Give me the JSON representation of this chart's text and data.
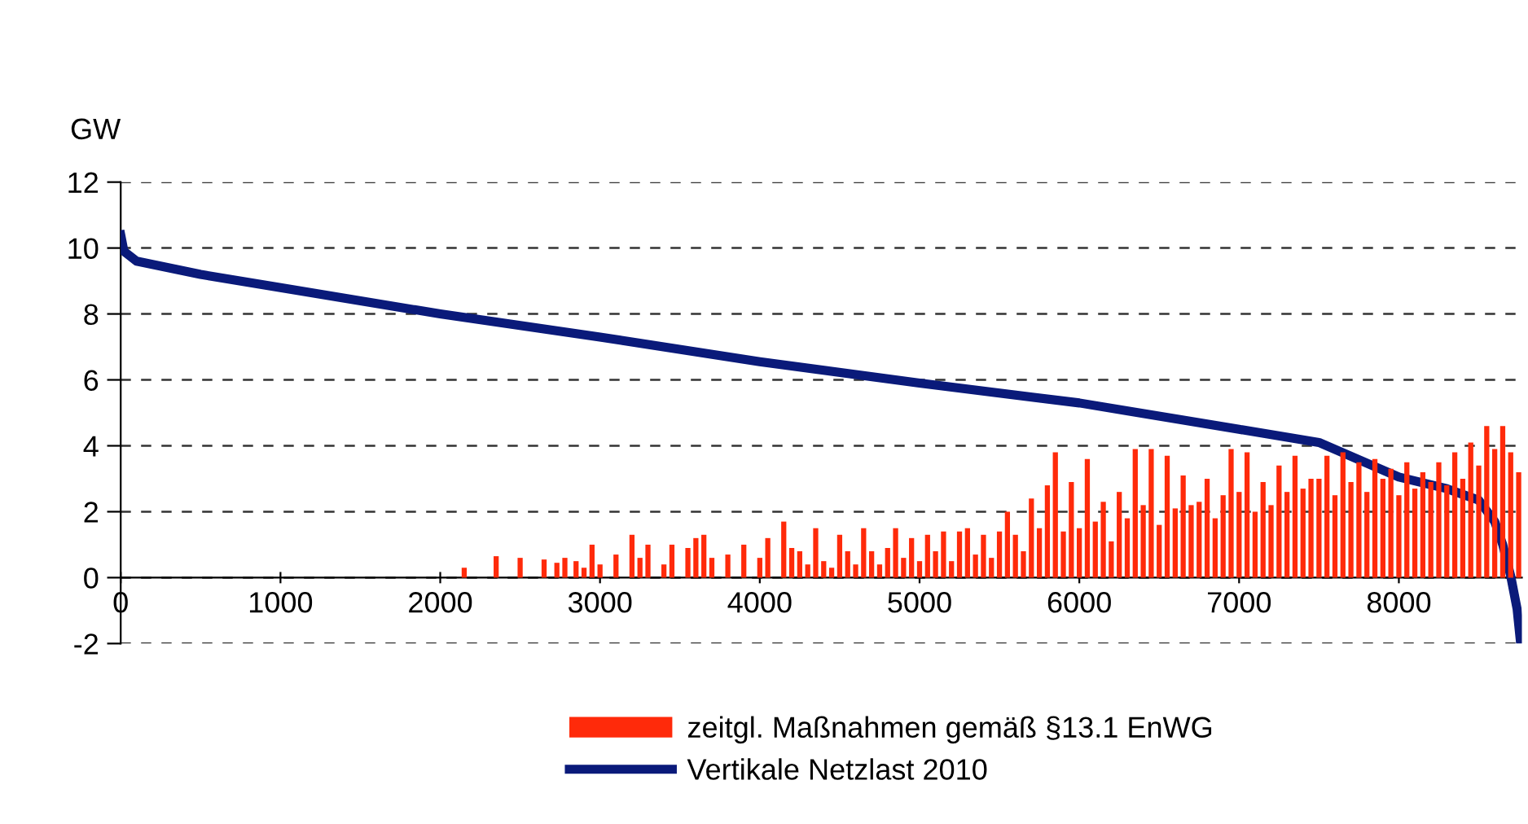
{
  "chart_data": {
    "type": "bar",
    "ylabel": "GW",
    "xlim": [
      0,
      8770
    ],
    "xticks": [
      0,
      1000,
      2000,
      3000,
      4000,
      5000,
      6000,
      7000,
      8000
    ],
    "ylim": [
      -2,
      12
    ],
    "yticks": [
      -2,
      0,
      2,
      4,
      6,
      8,
      10,
      12
    ],
    "grid": "y",
    "legend": "bottom",
    "series": [
      {
        "name": "zeitgl. Maßnahmen gemäß §13.1 EnWG",
        "color": "#ff2a0a",
        "x": [
          2150,
          2350,
          2500,
          2650,
          2730,
          2780,
          2850,
          2900,
          2950,
          3000,
          3100,
          3200,
          3250,
          3300,
          3400,
          3450,
          3550,
          3600,
          3650,
          3700,
          3800,
          3900,
          4000,
          4050,
          4150,
          4200,
          4250,
          4300,
          4350,
          4400,
          4450,
          4500,
          4550,
          4600,
          4650,
          4700,
          4750,
          4800,
          4850,
          4900,
          4950,
          5000,
          5050,
          5100,
          5150,
          5200,
          5250,
          5300,
          5350,
          5400,
          5450,
          5500,
          5550,
          5600,
          5650,
          5700,
          5750,
          5800,
          5850,
          5900,
          5950,
          6000,
          6050,
          6100,
          6150,
          6200,
          6250,
          6300,
          6350,
          6400,
          6450,
          6500,
          6550,
          6600,
          6650,
          6700,
          6750,
          6800,
          6850,
          6900,
          6950,
          7000,
          7050,
          7100,
          7150,
          7200,
          7250,
          7300,
          7350,
          7400,
          7450,
          7500,
          7550,
          7600,
          7650,
          7700,
          7750,
          7800,
          7850,
          7900,
          7950,
          8000,
          8050,
          8100,
          8150,
          8200,
          8250,
          8300,
          8350,
          8400,
          8450,
          8500,
          8550,
          8600,
          8650,
          8700,
          8750
        ],
        "values": [
          0.3,
          0.65,
          0.6,
          0.55,
          0.45,
          0.6,
          0.5,
          0.3,
          1.0,
          0.4,
          0.7,
          1.3,
          0.6,
          1.0,
          0.4,
          1.0,
          0.9,
          1.2,
          1.3,
          0.6,
          0.7,
          1.0,
          0.6,
          1.2,
          1.7,
          0.9,
          0.8,
          0.4,
          1.5,
          0.5,
          0.3,
          1.3,
          0.8,
          0.4,
          1.5,
          0.8,
          0.4,
          0.9,
          1.5,
          0.6,
          1.2,
          0.5,
          1.3,
          0.8,
          1.4,
          0.5,
          1.4,
          1.5,
          0.7,
          1.3,
          0.6,
          1.4,
          2.0,
          1.3,
          0.8,
          2.4,
          1.5,
          2.8,
          3.8,
          1.4,
          2.9,
          1.5,
          3.6,
          1.7,
          2.3,
          1.1,
          2.6,
          1.8,
          3.9,
          2.2,
          3.9,
          1.6,
          3.7,
          2.1,
          3.1,
          2.2,
          2.3,
          3.0,
          1.8,
          2.5,
          3.9,
          2.6,
          3.8,
          2.0,
          2.9,
          2.2,
          3.4,
          2.6,
          3.7,
          2.7,
          3.0,
          3.0,
          3.7,
          2.5,
          3.8,
          2.9,
          3.5,
          2.6,
          3.6,
          3.0,
          3.3,
          2.5,
          3.5,
          2.7,
          3.2,
          2.9,
          3.5,
          2.8,
          3.8,
          3.0,
          4.1,
          3.4,
          4.6,
          3.9,
          4.6,
          3.8,
          3.2
        ]
      },
      {
        "name": "Vertikale Netzlast 2010",
        "type": "line",
        "color": "#0a1a7a",
        "x": [
          0,
          20,
          100,
          500,
          1000,
          2000,
          3000,
          4000,
          5000,
          6000,
          7000,
          7500,
          8000,
          8300,
          8500,
          8600,
          8650,
          8700,
          8740,
          8760
        ],
        "values": [
          10.4,
          9.9,
          9.6,
          9.2,
          8.8,
          8.0,
          7.3,
          6.55,
          5.9,
          5.3,
          4.5,
          4.1,
          3.05,
          2.7,
          2.35,
          1.7,
          1.0,
          0.05,
          -0.95,
          -1.9
        ]
      }
    ]
  }
}
